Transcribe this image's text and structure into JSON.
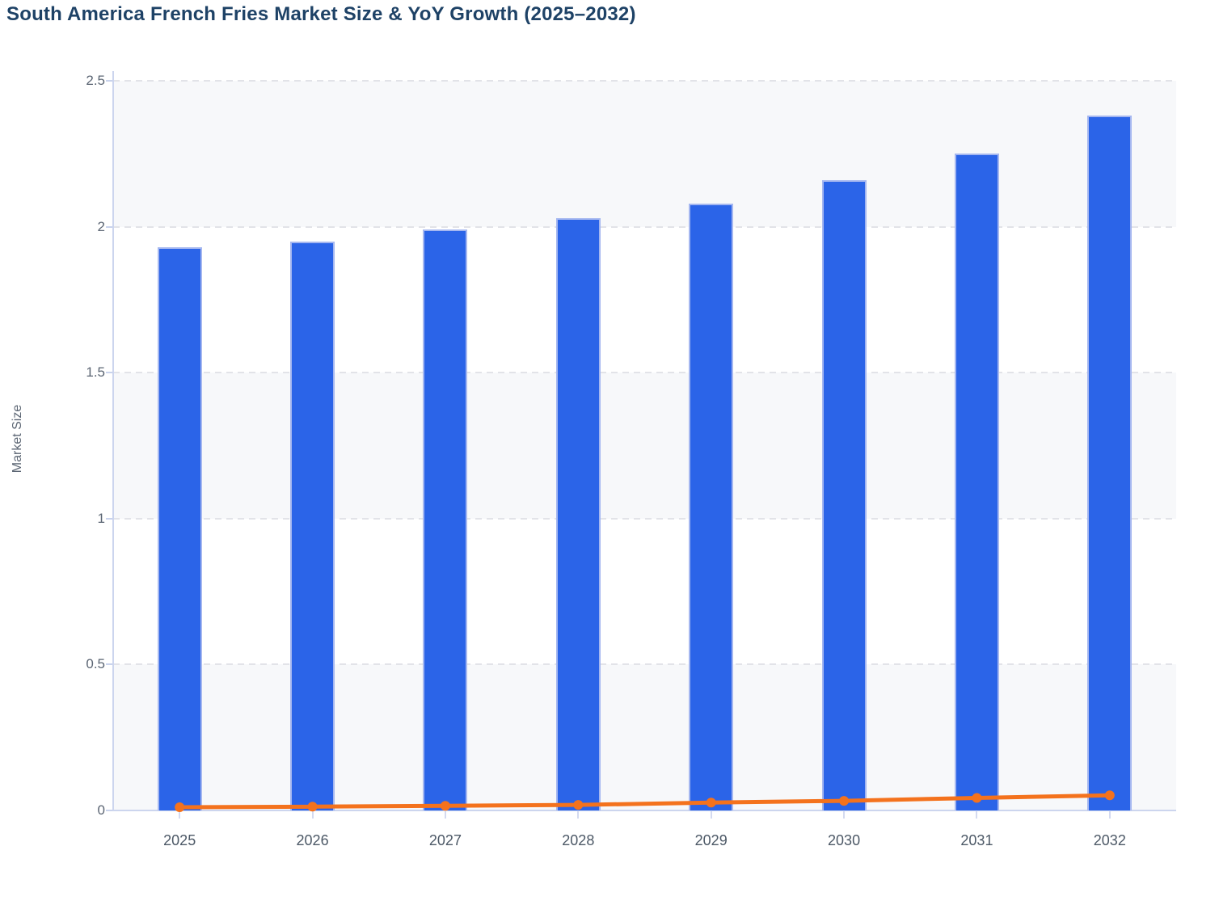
{
  "chart_data": {
    "type": "bar",
    "title": "South America French Fries Market Size & YoY Growth (2025–2032)",
    "xlabel": "",
    "ylabel": "Market Size",
    "categories": [
      "2025",
      "2026",
      "2027",
      "2028",
      "2029",
      "2030",
      "2031",
      "2032"
    ],
    "series": [
      {
        "name": "Market Size",
        "chart": "bar",
        "values": [
          1.93,
          1.95,
          1.99,
          2.03,
          2.08,
          2.16,
          2.25,
          2.38
        ]
      },
      {
        "name": "YoY Growth",
        "chart": "line",
        "values": [
          0.011,
          0.013,
          0.016,
          0.019,
          0.027,
          0.033,
          0.043,
          0.052
        ]
      }
    ],
    "ylim": [
      0,
      2.5
    ],
    "yticks": [
      0,
      0.5,
      1,
      1.5,
      2,
      2.5
    ],
    "grid": "horizontal-dashed",
    "band_fill": "alternating-horizontal",
    "legend": "none"
  },
  "colors": {
    "bar": "#2b64e8",
    "bar_border": "#a5b7f0",
    "line": "#f4721d",
    "band": "#f7f8fa",
    "grid": "#e2e3e8",
    "axis": "#ccd5ee",
    "title_text": "#1e4266",
    "tick_text": "#5b6573",
    "x_tick_text": "#4c5866"
  }
}
